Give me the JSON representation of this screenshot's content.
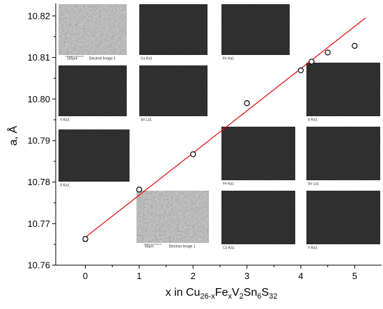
{
  "chart_data": {
    "type": "scatter",
    "title": "",
    "xlabel": {
      "base": "x in Cu",
      "sub1": "26-x",
      "mid1": "Fe",
      "sub2": "x",
      "mid2": "V",
      "sub3": "2",
      "mid3": "Sn",
      "sub4": "6",
      "mid4": "S",
      "sub5": "32"
    },
    "ylabel": "a, Å",
    "xlim": [
      -0.55,
      5.5
    ],
    "ylim": [
      10.76,
      10.823
    ],
    "xticks": [
      0,
      1,
      2,
      3,
      4,
      5
    ],
    "yticks": [
      10.76,
      10.77,
      10.78,
      10.79,
      10.8,
      10.81,
      10.82
    ],
    "ytick_labels": [
      "10.76",
      "10.77",
      "10.78",
      "10.79",
      "10.80",
      "10.81",
      "10.82"
    ],
    "grid": false,
    "legend": "none",
    "series": [
      {
        "marker": "open-circle",
        "x": [
          0,
          1,
          2,
          3,
          4,
          4.2,
          4.5,
          5
        ],
        "y": [
          10.7663,
          10.7782,
          10.7867,
          10.799,
          10.8069,
          10.809,
          10.8112,
          10.8128
        ],
        "yerr": [
          0.0006,
          0.0003,
          0.0003,
          0.0003,
          0.0003,
          0.0003,
          0.0003,
          0.0003
        ]
      }
    ],
    "fit_line": {
      "x": [
        0,
        5.2
      ],
      "y": [
        10.7667,
        10.8195
      ],
      "color": "#e00000"
    },
    "insets": [
      {
        "label": "Electron Image 1",
        "scale": "100μm"
      },
      {
        "label": "Cu Ka1"
      },
      {
        "label": "Fe Ka1"
      },
      {
        "label": "V Ka1"
      },
      {
        "label": "Sn La1"
      },
      {
        "label": "S Ka1"
      },
      {
        "label": "S Ka1"
      },
      {
        "label": "Fe Ka1"
      },
      {
        "label": "Sn La1"
      },
      {
        "label": "Electron Image 1",
        "scale": "60μm"
      },
      {
        "label": "Cu Ka1"
      },
      {
        "label": "V Ka1"
      }
    ]
  }
}
